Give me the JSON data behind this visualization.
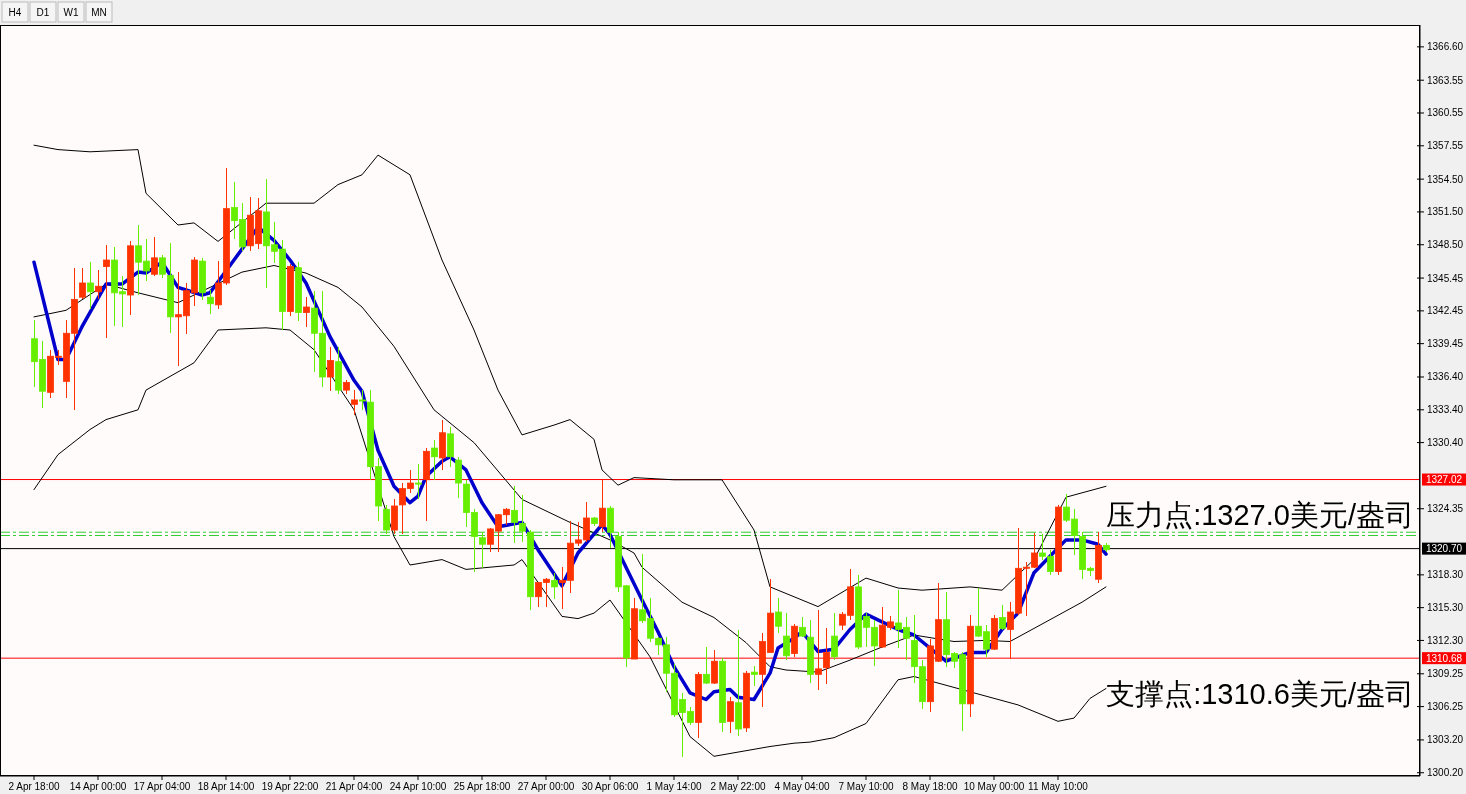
{
  "chart_data": {
    "type": "candlestick",
    "categories": [
      "2 Apr 18:00",
      null,
      null,
      null,
      null,
      null,
      null,
      null,
      "14 Apr 00:00",
      null,
      null,
      null,
      null,
      null,
      null,
      null,
      "17 Apr 04:00",
      null,
      null,
      null,
      null,
      null,
      null,
      null,
      "18 Apr 14:00",
      null,
      null,
      null,
      null,
      null,
      null,
      null,
      "19 Apr 22:00",
      null,
      null,
      null,
      null,
      null,
      null,
      null,
      "21 Apr 04:00",
      null,
      null,
      null,
      null,
      null,
      null,
      null,
      "24 Apr 10:00",
      null,
      null,
      null,
      null,
      null,
      null,
      null,
      "25 Apr 18:00",
      null,
      null,
      null,
      null,
      null,
      null,
      null,
      "27 Apr 00:00",
      null,
      null,
      null,
      null,
      null,
      null,
      null,
      "30 Apr 06:00",
      null,
      null,
      null,
      null,
      null,
      null,
      null,
      "1 May 14:00",
      null,
      null,
      null,
      null,
      null,
      null,
      null,
      "2 May 22:00",
      null,
      null,
      null,
      null,
      null,
      null,
      null,
      "4 May 04:00",
      null,
      null,
      null,
      null,
      null,
      null,
      null,
      "7 May 10:00",
      null,
      null,
      null,
      null,
      null,
      null,
      null,
      "8 May 18:00",
      null,
      null,
      null,
      null,
      null,
      null,
      null,
      "10 May 00:00",
      null,
      null,
      null,
      null,
      null,
      null,
      null,
      "11 May 10:00",
      null,
      null,
      null,
      null,
      null,
      null
    ],
    "ohlc": [
      [
        1339.9,
        1341.6,
        1335.5,
        1337.8
      ],
      [
        1338.0,
        1339.7,
        1333.6,
        1335.1
      ],
      [
        1335.0,
        1338.9,
        1334.5,
        1338.3
      ],
      [
        1338.2,
        1338.9,
        1337.5,
        1338.3
      ],
      [
        1336.0,
        1341.6,
        1334.5,
        1340.4
      ],
      [
        1340.4,
        1346.4,
        1333.4,
        1343.5
      ],
      [
        1343.7,
        1346.4,
        1343.5,
        1345.0
      ],
      [
        1345.0,
        1346.9,
        1342.6,
        1344.2
      ],
      [
        1344.2,
        1346.2,
        1343.5,
        1344.7
      ],
      [
        1346.5,
        1348.5,
        1340.0,
        1347.1
      ],
      [
        1347.1,
        1348.3,
        1341.1,
        1344.1
      ],
      [
        1344.2,
        1345.6,
        1341.0,
        1344.0
      ],
      [
        1343.9,
        1348.8,
        1342.1,
        1348.4
      ],
      [
        1348.4,
        1350.3,
        1343.9,
        1346.9
      ],
      [
        1347.0,
        1349.0,
        1345.2,
        1346.1
      ],
      [
        1345.8,
        1349.2,
        1345.6,
        1347.3
      ],
      [
        1347.3,
        1347.6,
        1345.5,
        1345.8
      ],
      [
        1345.7,
        1348.7,
        1340.4,
        1341.9
      ],
      [
        1341.9,
        1346.0,
        1337.4,
        1342.1
      ],
      [
        1342.0,
        1345.0,
        1340.3,
        1344.3
      ],
      [
        1344.1,
        1347.4,
        1342.9,
        1347.1
      ],
      [
        1347.0,
        1347.3,
        1343.4,
        1344.1
      ],
      [
        1343.7,
        1344.4,
        1342.2,
        1343.1
      ],
      [
        1343.0,
        1347.0,
        1342.6,
        1345.0
      ],
      [
        1345.0,
        1355.5,
        1344.8,
        1351.8
      ],
      [
        1351.9,
        1354.2,
        1349.0,
        1350.7
      ],
      [
        1350.8,
        1352.3,
        1347.9,
        1348.3
      ],
      [
        1348.4,
        1352.9,
        1347.9,
        1351.2
      ],
      [
        1348.6,
        1352.8,
        1348.1,
        1351.6
      ],
      [
        1351.5,
        1354.5,
        1344.5,
        1348.4
      ],
      [
        1348.5,
        1350.6,
        1346.8,
        1347.9
      ],
      [
        1348.1,
        1348.9,
        1340.7,
        1342.4
      ],
      [
        1342.4,
        1346.7,
        1342.0,
        1346.5
      ],
      [
        1346.4,
        1346.9,
        1341.5,
        1342.3
      ],
      [
        1342.3,
        1343.7,
        1341.0,
        1342.8
      ],
      [
        1342.7,
        1344.3,
        1336.9,
        1340.4
      ],
      [
        1340.4,
        1344.3,
        1335.5,
        1336.4
      ],
      [
        1336.4,
        1339.1,
        1335.1,
        1337.9
      ],
      [
        1337.8,
        1339.1,
        1334.8,
        1335.2
      ],
      [
        1335.2,
        1336.1,
        1334.8,
        1335.9
      ],
      [
        1333.9,
        1335.2,
        1332.9,
        1334.3
      ],
      [
        1334.3,
        1335.2,
        1333.4,
        1334.2
      ],
      [
        1334.1,
        1335.2,
        1327.0,
        1328.2
      ],
      [
        1328.2,
        1329.0,
        1323.2,
        1324.6
      ],
      [
        1324.3,
        1324.7,
        1322.0,
        1322.4
      ],
      [
        1322.4,
        1325.2,
        1322.0,
        1324.6
      ],
      [
        1324.7,
        1326.7,
        1322.0,
        1326.2
      ],
      [
        1326.2,
        1327.9,
        1325.8,
        1326.7
      ],
      [
        1326.7,
        1328.4,
        1325.2,
        1326.6
      ],
      [
        1327.0,
        1329.9,
        1323.2,
        1329.6
      ],
      [
        1329.9,
        1330.6,
        1327.0,
        1329.1
      ],
      [
        1329.0,
        1332.5,
        1327.9,
        1331.3
      ],
      [
        1331.2,
        1331.8,
        1328.2,
        1329.1
      ],
      [
        1328.8,
        1329.1,
        1325.3,
        1326.7
      ],
      [
        1326.6,
        1327.0,
        1322.7,
        1324.0
      ],
      [
        1324.0,
        1324.3,
        1318.6,
        1321.8
      ],
      [
        1321.7,
        1322.2,
        1318.9,
        1321.1
      ],
      [
        1321.1,
        1322.6,
        1320.4,
        1322.5
      ],
      [
        1322.3,
        1323.9,
        1320.4,
        1323.8
      ],
      [
        1323.8,
        1324.4,
        1322.9,
        1324.3
      ],
      [
        1324.2,
        1326.4,
        1321.2,
        1323.1
      ],
      [
        1323.0,
        1325.6,
        1321.3,
        1322.3
      ],
      [
        1322.2,
        1322.4,
        1315.1,
        1316.3
      ],
      [
        1316.3,
        1317.6,
        1315.4,
        1317.6
      ],
      [
        1317.6,
        1318.0,
        1315.4,
        1317.9
      ],
      [
        1317.8,
        1318.5,
        1316.1,
        1317.2
      ],
      [
        1317.6,
        1319.0,
        1315.2,
        1317.8
      ],
      [
        1317.8,
        1323.2,
        1316.6,
        1321.2
      ],
      [
        1321.2,
        1323.1,
        1320.9,
        1321.5
      ],
      [
        1321.5,
        1325.0,
        1321.3,
        1323.5
      ],
      [
        1323.5,
        1323.6,
        1322.8,
        1323.0
      ],
      [
        1322.7,
        1327.0,
        1322.2,
        1324.4
      ],
      [
        1324.4,
        1324.6,
        1320.8,
        1322.2
      ],
      [
        1321.8,
        1322.2,
        1316.7,
        1317.2
      ],
      [
        1317.3,
        1317.4,
        1309.9,
        1310.7
      ],
      [
        1310.6,
        1316.2,
        1310.6,
        1315.2
      ],
      [
        1315.1,
        1320.2,
        1313.9,
        1314.1
      ],
      [
        1314.3,
        1316.2,
        1312.2,
        1312.5
      ],
      [
        1312.5,
        1312.6,
        1311.0,
        1311.9
      ],
      [
        1311.9,
        1312.6,
        1307.6,
        1309.3
      ],
      [
        1309.3,
        1310.1,
        1305.3,
        1305.5
      ],
      [
        1306.9,
        1307.5,
        1301.6,
        1305.7
      ],
      [
        1305.8,
        1306.2,
        1304.6,
        1304.8
      ],
      [
        1304.8,
        1309.4,
        1303.4,
        1309.2
      ],
      [
        1309.2,
        1311.7,
        1308.3,
        1308.4
      ],
      [
        1308.4,
        1311.4,
        1308.3,
        1310.4
      ],
      [
        1310.4,
        1310.7,
        1303.9,
        1304.8
      ],
      [
        1304.9,
        1307.1,
        1303.8,
        1306.7
      ],
      [
        1306.6,
        1313.3,
        1303.6,
        1304.2
      ],
      [
        1304.3,
        1309.5,
        1303.9,
        1309.3
      ],
      [
        1309.4,
        1310.0,
        1308.1,
        1309.2
      ],
      [
        1309.2,
        1313.0,
        1306.2,
        1312.2
      ],
      [
        1311.2,
        1317.9,
        1311.2,
        1314.8
      ],
      [
        1314.9,
        1316.2,
        1313.0,
        1313.6
      ],
      [
        1312.7,
        1314.8,
        1310.5,
        1310.9
      ],
      [
        1311.1,
        1313.8,
        1310.8,
        1313.6
      ],
      [
        1313.5,
        1314.4,
        1312.6,
        1312.7
      ],
      [
        1312.6,
        1314.2,
        1308.4,
        1309.2
      ],
      [
        1309.2,
        1315.1,
        1307.8,
        1309.7
      ],
      [
        1309.8,
        1313.4,
        1308.3,
        1311.2
      ],
      [
        1312.7,
        1314.8,
        1310.5,
        1310.8
      ],
      [
        1313.7,
        1314.9,
        1313.3,
        1314.7
      ],
      [
        1314.6,
        1318.8,
        1314.2,
        1317.2
      ],
      [
        1317.2,
        1318.3,
        1311.5,
        1311.7
      ],
      [
        1314.5,
        1314.8,
        1311.7,
        1313.5
      ],
      [
        1313.5,
        1314.2,
        1310.0,
        1311.8
      ],
      [
        1311.7,
        1315.4,
        1311.6,
        1313.7
      ],
      [
        1313.5,
        1314.5,
        1313.3,
        1314.0
      ],
      [
        1313.9,
        1316.9,
        1311.6,
        1313.3
      ],
      [
        1313.5,
        1314.4,
        1310.5,
        1312.5
      ],
      [
        1312.3,
        1314.6,
        1308.4,
        1309.9
      ],
      [
        1309.9,
        1310.5,
        1306.0,
        1306.7
      ],
      [
        1306.7,
        1312.4,
        1305.8,
        1311.8
      ],
      [
        1310.4,
        1317.6,
        1310.3,
        1314.2
      ],
      [
        1314.2,
        1316.7,
        1309.9,
        1311.0
      ],
      [
        1311.1,
        1311.2,
        1309.8,
        1310.4
      ],
      [
        1311.0,
        1311.2,
        1304.0,
        1306.5
      ],
      [
        1306.5,
        1314.6,
        1305.3,
        1313.6
      ],
      [
        1313.6,
        1317.1,
        1312.6,
        1312.7
      ],
      [
        1313.1,
        1313.7,
        1310.8,
        1311.5
      ],
      [
        1311.5,
        1314.6,
        1311.4,
        1314.3
      ],
      [
        1314.4,
        1315.5,
        1313.3,
        1313.4
      ],
      [
        1313.3,
        1315.8,
        1310.6,
        1314.9
      ],
      [
        1314.8,
        1322.6,
        1314.6,
        1318.9
      ],
      [
        1318.9,
        1319.5,
        1314.5,
        1319.0
      ],
      [
        1319.0,
        1322.1,
        1318.9,
        1320.3
      ],
      [
        1320.3,
        1322.0,
        1319.7,
        1320.0
      ],
      [
        1320.0,
        1320.6,
        1318.3,
        1318.6
      ],
      [
        1318.6,
        1324.7,
        1318.3,
        1324.5
      ],
      [
        1324.5,
        1325.7,
        1323.1,
        1323.3
      ],
      [
        1323.4,
        1324.3,
        1320.1,
        1321.9
      ],
      [
        1321.8,
        1322.2,
        1317.9,
        1318.8
      ],
      [
        1318.9,
        1319.0,
        1318.2,
        1318.7
      ],
      [
        1317.9,
        1322.2,
        1317.6,
        1321.0
      ],
      [
        1321.0,
        1321.2,
        1320.4,
        1320.6
      ]
    ],
    "colors": [
      "#66ee00",
      "#66ee00",
      "#ff3300",
      "#ff3300",
      "#ff3300",
      "#ff3300",
      "#ff3300",
      "#66ee00",
      "#ff3300",
      "#ff3300",
      "#66ee00",
      "#66ee00",
      "#ff3300",
      "#66ee00",
      "#66ee00",
      "#ff3300",
      "#66ee00",
      "#66ee00",
      "#ff3300",
      "#ff3300",
      "#ff3300",
      "#66ee00",
      "#66ee00",
      "#ff3300",
      "#ff3300",
      "#66ee00",
      "#66ee00",
      "#ff3300",
      "#ff3300",
      "#66ee00",
      "#66ee00",
      "#66ee00",
      "#ff3300",
      "#66ee00",
      "#ff3300",
      "#66ee00",
      "#66ee00",
      "#ff3300",
      "#66ee00",
      "#ff3300",
      "#ff3300",
      "#66ee00",
      "#66ee00",
      "#66ee00",
      "#66ee00",
      "#ff3300",
      "#ff3300",
      "#ff3300",
      "#66ee00",
      "#ff3300",
      "#66ee00",
      "#ff3300",
      "#66ee00",
      "#66ee00",
      "#66ee00",
      "#66ee00",
      "#66ee00",
      "#ff3300",
      "#ff3300",
      "#ff3300",
      "#66ee00",
      "#66ee00",
      "#66ee00",
      "#ff3300",
      "#ff3300",
      "#66ee00",
      "#ff3300",
      "#ff3300",
      "#ff3300",
      "#ff3300",
      "#66ee00",
      "#ff3300",
      "#66ee00",
      "#66ee00",
      "#66ee00",
      "#ff3300",
      "#66ee00",
      "#66ee00",
      "#66ee00",
      "#66ee00",
      "#66ee00",
      "#66ee00",
      "#66ee00",
      "#ff3300",
      "#66ee00",
      "#ff3300",
      "#66ee00",
      "#ff3300",
      "#66ee00",
      "#ff3300",
      "#66ee00",
      "#ff3300",
      "#ff3300",
      "#66ee00",
      "#66ee00",
      "#ff3300",
      "#66ee00",
      "#66ee00",
      "#ff3300",
      "#ff3300",
      "#66ee00",
      "#ff3300",
      "#ff3300",
      "#66ee00",
      "#66ee00",
      "#66ee00",
      "#ff3300",
      "#ff3300",
      "#66ee00",
      "#66ee00",
      "#66ee00",
      "#66ee00",
      "#ff3300",
      "#ff3300",
      "#66ee00",
      "#66ee00",
      "#66ee00",
      "#ff3300",
      "#66ee00",
      "#66ee00",
      "#ff3300",
      "#66ee00",
      "#ff3300",
      "#ff3300",
      "#ff3300",
      "#ff3300",
      "#66ee00",
      "#66ee00",
      "#ff3300",
      "#66ee00",
      "#66ee00",
      "#66ee00",
      "#66ee00",
      "#ff3300",
      "#66ee00"
    ],
    "series": [
      {
        "type": "line",
        "color": "#000000",
        "values": [
          1357.6,
          null,
          null,
          1357.2,
          null,
          null,
          null,
          1357.0,
          null,
          null,
          null,
          null,
          null,
          1357.2,
          1353.2,
          null,
          null,
          null,
          1350.3,
          null,
          1350.5,
          null,
          null,
          1348.8,
          null,
          null,
          null,
          null,
          null,
          1352.3,
          null,
          null,
          null,
          null,
          null,
          1352.3,
          null,
          null,
          1354.0,
          null,
          null,
          1354.9,
          null,
          1356.7,
          null,
          null,
          null,
          1354.9,
          null,
          null,
          null,
          1347.1,
          null,
          null,
          null,
          1340.7,
          null,
          null,
          1335.2,
          null,
          null,
          1331.1,
          null,
          null,
          null,
          1332.0,
          null,
          1332.5,
          null,
          null,
          1330.7,
          1327.9,
          null,
          1326.5,
          null,
          1327.2,
          null,
          null,
          null,
          null,
          1327.0,
          null,
          null,
          null,
          null,
          null,
          1327.0,
          null,
          null,
          null,
          1322.4,
          null,
          1317.2,
          null,
          null,
          null,
          null,
          null,
          1315.4,
          null,
          null,
          null,
          null,
          null,
          1318.0,
          null,
          null,
          null,
          1317.1,
          null,
          null,
          1316.9,
          null,
          null,
          null,
          null,
          null,
          1317.2,
          null,
          null,
          null,
          1316.9,
          null,
          null,
          null,
          1319.7,
          null,
          null,
          null,
          1325.4,
          null,
          null,
          null,
          null,
          1326.4
        ]
      },
      {
        "type": "line",
        "color": "#000000",
        "values": [
          1341.9,
          null,
          null,
          null,
          1342.5,
          null,
          null,
          null,
          null,
          1344.9,
          null,
          null,
          null,
          1344.1,
          null,
          null,
          null,
          null,
          1343.2,
          null,
          null,
          null,
          1344.6,
          null,
          null,
          null,
          1346.0,
          null,
          null,
          null,
          1346.6,
          null,
          null,
          null,
          1345.9,
          null,
          null,
          null,
          1344.6,
          null,
          null,
          1342.8,
          null,
          null,
          null,
          1339.2,
          null,
          null,
          null,
          null,
          1333.4,
          null,
          null,
          null,
          null,
          1330.4,
          null,
          null,
          null,
          null,
          null,
          1325.2,
          null,
          null,
          null,
          null,
          null,
          1323.1,
          null,
          null,
          null,
          null,
          1321.5,
          null,
          null,
          1320.3,
          1319.0,
          null,
          null,
          null,
          null,
          1315.8,
          null,
          null,
          null,
          1314.4,
          null,
          null,
          null,
          1312.1,
          null,
          null,
          1309.9,
          null,
          1309.6,
          null,
          null,
          null,
          1309.4,
          null,
          null,
          null,
          1310.5,
          null,
          null,
          null,
          1311.7,
          null,
          null,
          null,
          1312.8,
          null,
          null,
          null,
          null,
          1312.2,
          null,
          null,
          null,
          1312.3,
          null,
          null,
          1312.2,
          null,
          null,
          null,
          null,
          1314.2,
          null,
          null,
          null,
          1315.8,
          null,
          null,
          1317.2
        ]
      },
      {
        "type": "line",
        "color": "#000000",
        "values": [
          1326.1,
          null,
          null,
          1329.3,
          null,
          null,
          null,
          1331.6,
          null,
          1332.5,
          null,
          null,
          null,
          1333.4,
          1335.2,
          null,
          null,
          null,
          null,
          null,
          1337.7,
          null,
          null,
          1340.7,
          null,
          null,
          null,
          null,
          null,
          1340.9,
          null,
          null,
          1340.7,
          null,
          null,
          1338.9,
          null,
          null,
          null,
          null,
          1333.4,
          null,
          null,
          null,
          null,
          1321.8,
          null,
          1319.2,
          null,
          null,
          null,
          1319.7,
          null,
          null,
          1318.8,
          null,
          null,
          null,
          null,
          null,
          1319.2,
          1319.7,
          null,
          null,
          null,
          null,
          1314.5,
          null,
          1314.3,
          null,
          1314.8,
          null,
          1316.0,
          null,
          null,
          null,
          null,
          1310.8,
          null,
          null,
          null,
          null,
          1303.5,
          null,
          null,
          1301.7,
          null,
          null,
          null,
          null,
          null,
          null,
          1302.6,
          null,
          null,
          1302.9,
          null,
          1303.0,
          null,
          null,
          1303.4,
          null,
          null,
          null,
          1304.7,
          null,
          null,
          null,
          1308.7,
          null,
          1309.0,
          null,
          null,
          null,
          null,
          null,
          null,
          null,
          null,
          null,
          null,
          null,
          null,
          1306.4,
          null,
          null,
          null,
          null,
          1304.9,
          null,
          1305.2,
          null,
          1307.0,
          null,
          1307.9
        ]
      },
      {
        "type": "line",
        "color": "#0000cc",
        "values": [
          1346.9,
          null,
          null,
          1338.0,
          1338.0,
          null,
          1341.0,
          null,
          null,
          1344.9,
          null,
          1344.9,
          null,
          1346.0,
          1345.9,
          null,
          1346.9,
          null,
          1344.6,
          null,
          null,
          1343.9,
          1344.1,
          null,
          null,
          1347.1,
          null,
          null,
          1350.1,
          null,
          1348.9,
          null,
          1347.1,
          null,
          1345.0,
          null,
          null,
          1340.1,
          null,
          null,
          1336.1,
          1335.1,
          null,
          1329.7,
          null,
          1326.4,
          null,
          1324.9,
          1325.5,
          1327.3,
          null,
          1328.7,
          1329.1,
          null,
          1327.9,
          null,
          1324.9,
          null,
          1322.7,
          null,
          null,
          1323.1,
          null,
          1320.6,
          null,
          null,
          1317.3,
          null,
          1320.3,
          null,
          null,
          1322.9,
          1322.0,
          null,
          1319.0,
          null,
          1316.0,
          null,
          1313.1,
          null,
          1309.9,
          null,
          1307.5,
          null,
          1306.9,
          1307.6,
          null,
          1307.8,
          1307.1,
          null,
          1306.9,
          null,
          1309.3,
          1311.6,
          null,
          1312.5,
          1313.1,
          null,
          1311.3,
          null,
          1311.5,
          null,
          1313.3,
          null,
          1314.7,
          null,
          1314.0,
          null,
          1313.3,
          null,
          1312.8,
          null,
          null,
          null,
          1310.4,
          null,
          null,
          1311.2,
          null,
          1311.2,
          null,
          1313.3,
          null,
          1314.8,
          null,
          1318.5,
          null,
          1320.0,
          null,
          1321.5,
          null,
          1321.5,
          null,
          1321.1,
          1320.2
        ]
      }
    ],
    "ylim": [
      1299.9,
      1368.6
    ],
    "yticks": [
      {
        "value": 1366.6,
        "label": "1366.60"
      },
      {
        "value": 1363.55,
        "label": "1363.55"
      },
      {
        "value": 1360.55,
        "label": "1360.55"
      },
      {
        "value": 1357.55,
        "label": "1357.55"
      },
      {
        "value": 1354.5,
        "label": "1354.50"
      },
      {
        "value": 1351.5,
        "label": "1351.50"
      },
      {
        "value": 1348.5,
        "label": "1348.50"
      },
      {
        "value": 1345.45,
        "label": "1345.45"
      },
      {
        "value": 1342.45,
        "label": "1342.45"
      },
      {
        "value": 1339.45,
        "label": "1339.45"
      },
      {
        "value": 1336.4,
        "label": "1336.40"
      },
      {
        "value": 1333.4,
        "label": "1333.40"
      },
      {
        "value": 1330.4,
        "label": "1330.40"
      },
      {
        "value": 1324.35,
        "label": "1324.35"
      },
      {
        "value": 1318.3,
        "label": "1318.30"
      },
      {
        "value": 1315.3,
        "label": "1315.30"
      },
      {
        "value": 1312.3,
        "label": "1312.30"
      },
      {
        "value": 1309.25,
        "label": "1309.25"
      },
      {
        "value": 1306.25,
        "label": "1306.25"
      },
      {
        "value": 1303.2,
        "label": "1303.20"
      },
      {
        "value": 1300.2,
        "label": "1300.20"
      }
    ],
    "ref_lines": [
      {
        "axis": "y",
        "value": 1327.02,
        "label": "1327.02",
        "color": "#ff0000"
      },
      {
        "axis": "y",
        "value": 1310.68,
        "label": "1310.68",
        "color": "#ff0000"
      },
      {
        "axis": "y",
        "value": 1320.7,
        "label": "1320.70",
        "color": "#000000"
      },
      {
        "axis": "y",
        "value": 1322.2,
        "color": "#33cc33",
        "line_style": "dashed"
      },
      {
        "axis": "y",
        "value": 1321.9,
        "color": "#33cc33",
        "line_style": "dashed"
      }
    ],
    "annotations": [
      "H4",
      "D1",
      "W1",
      "MN",
      {
        "text": "压力点:1327.0美元/盎司",
        "y": 1327.0
      },
      {
        "text": "支撑点:1310.6美元/盎司",
        "y": 1310.6
      }
    ]
  }
}
